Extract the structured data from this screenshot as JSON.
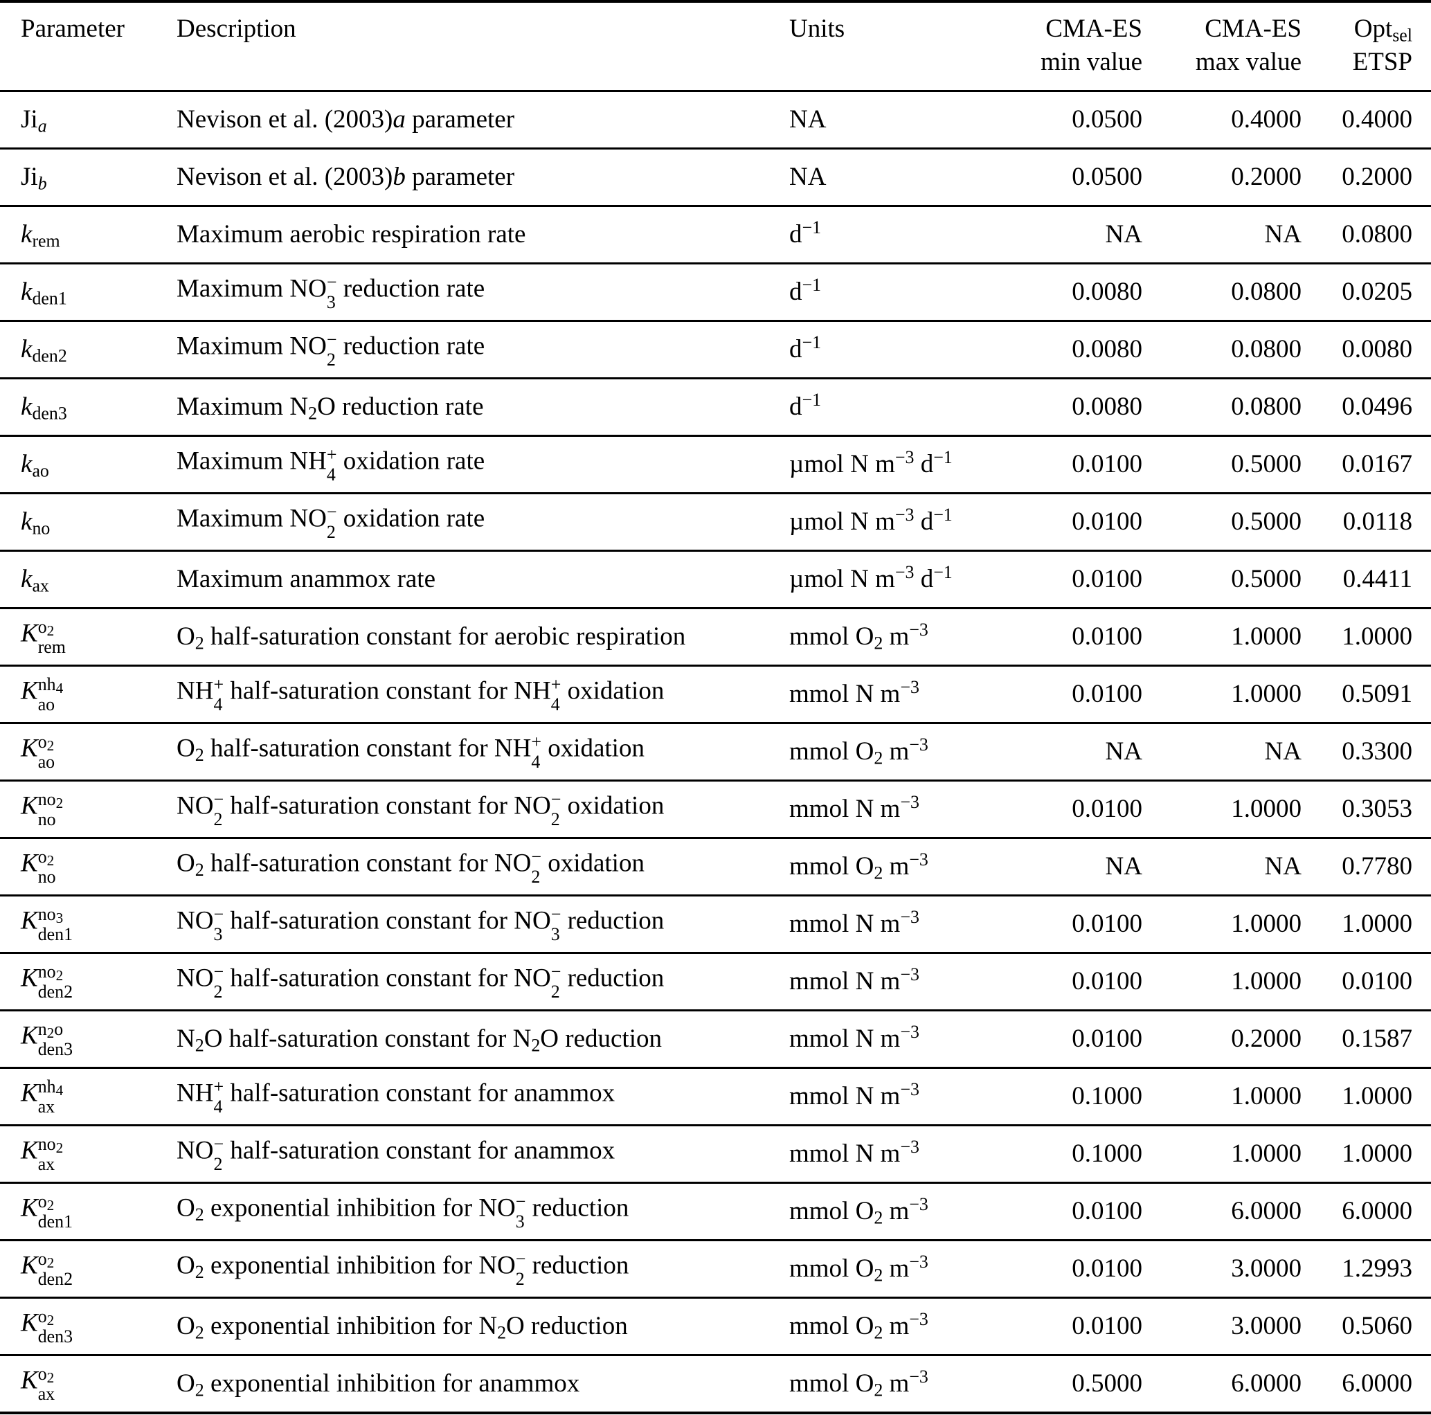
{
  "table": {
    "columns": [
      {
        "id": "param",
        "label_lines": [
          "Parameter"
        ],
        "align": "left"
      },
      {
        "id": "desc",
        "label_lines": [
          "Description"
        ],
        "align": "left"
      },
      {
        "id": "units",
        "label_lines": [
          "Units"
        ],
        "align": "left"
      },
      {
        "id": "min",
        "label_lines": [
          "CMA-ES",
          "min value"
        ],
        "align": "right"
      },
      {
        "id": "max",
        "label_lines": [
          "CMA-ES",
          "max value"
        ],
        "align": "right"
      },
      {
        "id": "opt",
        "label_lines": [
          "Opt_{sel}",
          "ETSP"
        ],
        "align": "right"
      }
    ],
    "rows": [
      {
        "param": "Ji_{*a*}",
        "desc": "Nevison et al. (2003)*a* parameter",
        "units": "NA",
        "min": "0.0500",
        "max": "0.4000",
        "opt": "0.4000"
      },
      {
        "param": "Ji_{*b*}",
        "desc": "Nevison et al. (2003)*b* parameter",
        "units": "NA",
        "min": "0.0500",
        "max": "0.2000",
        "opt": "0.2000"
      },
      {
        "param": "*k*_{rem}",
        "desc": "Maximum aerobic respiration rate",
        "units": "d^{−1}",
        "min": "NA",
        "max": "NA",
        "opt": "0.0800"
      },
      {
        "param": "*k*_{den1}",
        "desc": "Maximum NO^{−}_{3} reduction rate",
        "units": "d^{−1}",
        "min": "0.0080",
        "max": "0.0800",
        "opt": "0.0205"
      },
      {
        "param": "*k*_{den2}",
        "desc": "Maximum NO^{−}_{2} reduction rate",
        "units": "d^{−1}",
        "min": "0.0080",
        "max": "0.0800",
        "opt": "0.0080"
      },
      {
        "param": "*k*_{den3}",
        "desc": "Maximum N_{2}O reduction rate",
        "units": "d^{−1}",
        "min": "0.0080",
        "max": "0.0800",
        "opt": "0.0496"
      },
      {
        "param": "*k*_{ao}",
        "desc": "Maximum NH^{+}_{4} oxidation rate",
        "units": "µmol N m^{−3} d^{−1}",
        "min": "0.0100",
        "max": "0.5000",
        "opt": "0.0167"
      },
      {
        "param": "*k*_{no}",
        "desc": "Maximum NO^{−}_{2} oxidation rate",
        "units": "µmol N m^{−3} d^{−1}",
        "min": "0.0100",
        "max": "0.5000",
        "opt": "0.0118"
      },
      {
        "param": "*k*_{ax}",
        "desc": "Maximum anammox rate",
        "units": "µmol N m^{−3} d^{−1}",
        "min": "0.0100",
        "max": "0.5000",
        "opt": "0.4411"
      },
      {
        "param": "*K*^{o_{2}}_{rem}",
        "desc": "O_{2} half-saturation constant for aerobic respiration",
        "units": "mmol O_{2} m^{−3}",
        "min": "0.0100",
        "max": "1.0000",
        "opt": "1.0000"
      },
      {
        "param": "*K*^{nh_{4}}_{ao}",
        "desc": "NH^{+}_{4} half-saturation constant for NH^{+}_{4} oxidation",
        "units": "mmol N m^{−3}",
        "min": "0.0100",
        "max": "1.0000",
        "opt": "0.5091"
      },
      {
        "param": "*K*^{o_{2}}_{ao}",
        "desc": "O_{2} half-saturation constant for NH^{+}_{4} oxidation",
        "units": "mmol O_{2} m^{−3}",
        "min": "NA",
        "max": "NA",
        "opt": "0.3300"
      },
      {
        "param": "*K*^{no_{2}}_{no}",
        "desc": "NO^{−}_{2} half-saturation constant for NO^{−}_{2} oxidation",
        "units": "mmol N m^{−3}",
        "min": "0.0100",
        "max": "1.0000",
        "opt": "0.3053"
      },
      {
        "param": "*K*^{o_{2}}_{no}",
        "desc": "O_{2} half-saturation constant for NO^{−}_{2} oxidation",
        "units": "mmol O_{2} m^{−3}",
        "min": "NA",
        "max": "NA",
        "opt": "0.7780"
      },
      {
        "param": "*K*^{no_{3}}_{den1}",
        "desc": "NO^{−}_{3} half-saturation constant for NO^{−}_{3} reduction",
        "units": "mmol N m^{−3}",
        "min": "0.0100",
        "max": "1.0000",
        "opt": "1.0000"
      },
      {
        "param": "*K*^{no_{2}}_{den2}",
        "desc": "NO^{−}_{2} half-saturation constant for NO^{−}_{2} reduction",
        "units": "mmol N m^{−3}",
        "min": "0.0100",
        "max": "1.0000",
        "opt": "0.0100"
      },
      {
        "param": "*K*^{n_{2}o}_{den3}",
        "desc": "N_{2}O half-saturation constant for N_{2}O reduction",
        "units": "mmol N m^{−3}",
        "min": "0.0100",
        "max": "0.2000",
        "opt": "0.1587"
      },
      {
        "param": "*K*^{nh_{4}}_{ax}",
        "desc": "NH^{+}_{4} half-saturation constant for anammox",
        "units": "mmol N m^{−3}",
        "min": "0.1000",
        "max": "1.0000",
        "opt": "1.0000"
      },
      {
        "param": "*K*^{no_{2}}_{ax}",
        "desc": "NO^{−}_{2} half-saturation constant for anammox",
        "units": "mmol N m^{−3}",
        "min": "0.1000",
        "max": "1.0000",
        "opt": "1.0000"
      },
      {
        "param": "*K*^{o_{2}}_{den1}",
        "desc": "O_{2} exponential inhibition for NO^{−}_{3} reduction",
        "units": "mmol O_{2} m^{−3}",
        "min": "0.0100",
        "max": "6.0000",
        "opt": "6.0000"
      },
      {
        "param": "*K*^{o_{2}}_{den2}",
        "desc": "O_{2} exponential inhibition for NO^{−}_{2} reduction",
        "units": "mmol O_{2} m^{−3}",
        "min": "0.0100",
        "max": "3.0000",
        "opt": "1.2993"
      },
      {
        "param": "*K*^{o_{2}}_{den3}",
        "desc": "O_{2} exponential inhibition for N_{2}O reduction",
        "units": "mmol O_{2} m^{−3}",
        "min": "0.0100",
        "max": "3.0000",
        "opt": "0.5060"
      },
      {
        "param": "*K*^{o_{2}}_{ax}",
        "desc": "O_{2} exponential inhibition for anammox",
        "units": "mmol O_{2} m^{−3}",
        "min": "0.5000",
        "max": "6.0000",
        "opt": "6.0000"
      }
    ]
  }
}
